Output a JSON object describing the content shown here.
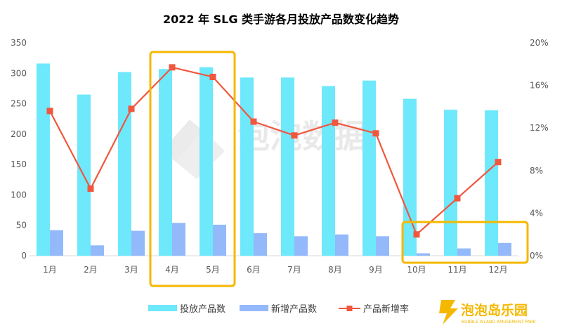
{
  "chart_data": {
    "type": "bar",
    "title": "2022 年 SLG 类手游各月投放产品数变化趋势",
    "categories": [
      "1月",
      "2月",
      "3月",
      "4月",
      "5月",
      "6月",
      "7月",
      "8月",
      "9月",
      "10月",
      "11月",
      "12月"
    ],
    "series": [
      {
        "name": "投放产品数",
        "type": "bar",
        "axis": "left",
        "color": "#6ee8fb",
        "values": [
          316,
          265,
          302,
          307,
          310,
          293,
          293,
          279,
          288,
          258,
          240,
          239
        ]
      },
      {
        "name": "新增产品数",
        "type": "bar",
        "axis": "left",
        "color": "#93b9fa",
        "values": [
          42,
          17,
          41,
          54,
          51,
          37,
          32,
          35,
          32,
          4,
          12,
          21
        ]
      },
      {
        "name": "产品新增率",
        "type": "line",
        "axis": "right",
        "color": "#f0573e",
        "values": [
          13.6,
          6.3,
          13.8,
          17.7,
          16.8,
          12.6,
          11.3,
          12.5,
          11.5,
          2.0,
          5.4,
          8.8
        ]
      }
    ],
    "y_left": {
      "min": 0,
      "max": 350,
      "ticks": [
        "0",
        "50",
        "100",
        "150",
        "200",
        "250",
        "300",
        "350"
      ]
    },
    "y_right": {
      "min": 0,
      "max": 20,
      "ticks": [
        "0%",
        "4%",
        "8%",
        "12%",
        "16%",
        "20%"
      ]
    },
    "grid": false,
    "legend": "bottom",
    "highlight_colors": "#f5b800"
  },
  "watermark": "泡泡数据",
  "brand": {
    "name": "泡泡岛乐园",
    "tagline": "BUBBLE ISLAND AMUSEMENT PARK",
    "color": "#f5b800"
  }
}
